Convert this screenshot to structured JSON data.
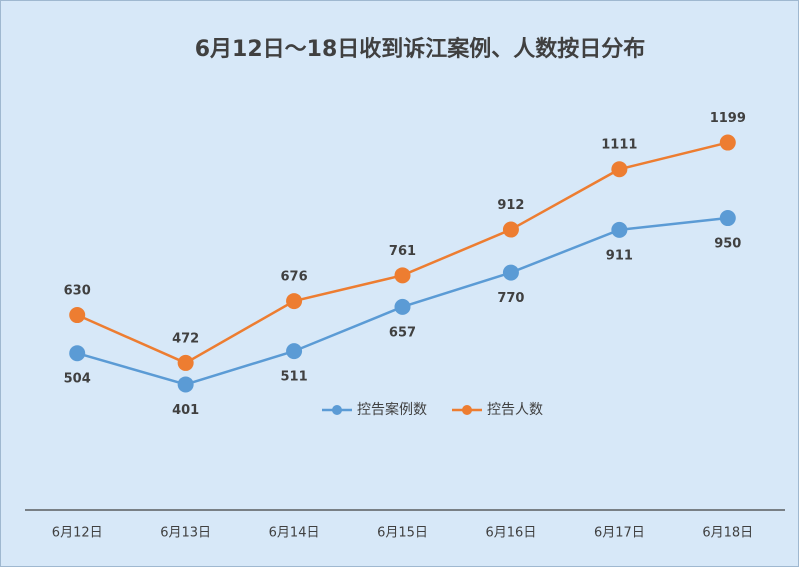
{
  "chart_data": {
    "type": "line",
    "title": "6月12日～18日收到诉江案例、人数按日分布",
    "categories": [
      "6月12日",
      "6月13日",
      "6月14日",
      "6月15日",
      "6月16日",
      "6月17日",
      "6月18日"
    ],
    "series": [
      {
        "name": "控告案例数",
        "color": "#5b9bd5",
        "values": [
          504,
          401,
          511,
          657,
          770,
          911,
          950
        ]
      },
      {
        "name": "控告人数",
        "color": "#ed7d31",
        "values": [
          630,
          472,
          676,
          761,
          912,
          1111,
          1199
        ]
      }
    ],
    "ylim": [
      0,
      1600
    ],
    "legend": "center"
  }
}
